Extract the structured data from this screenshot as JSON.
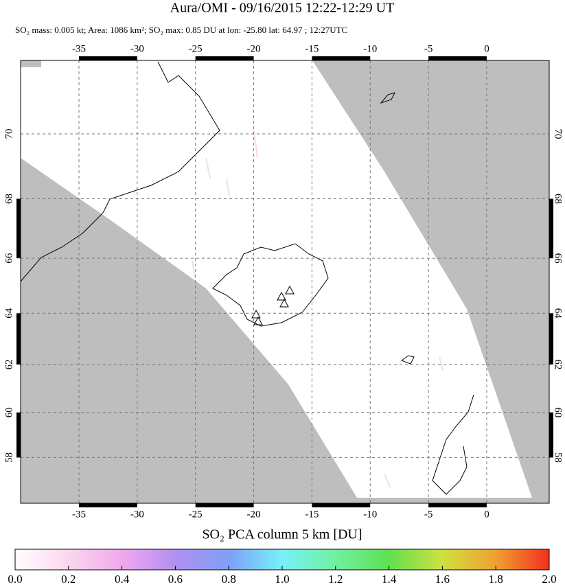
{
  "title": "Aura/OMI - 09/16/2015 12:22-12:29 UT",
  "subtitle": "SO₂ mass: 0.005 kt; Area: 1086 km²; SO₂ max: 0.85 DU at lon: -25.80 lat: 64.97 ; 12:27UTC",
  "map": {
    "lon_ticks": [
      -35,
      -30,
      -25,
      -20,
      -15,
      -10,
      -5,
      0
    ],
    "lat_ticks": [
      70,
      68,
      66,
      64,
      62,
      60,
      58
    ]
  },
  "colorbar": {
    "label": "SO₂ PCA column 5 km [DU]",
    "ticks": [
      {
        "value": 0,
        "label": "0.0"
      },
      {
        "value": 0.2,
        "label": "0.2"
      },
      {
        "value": 0.4,
        "label": "0.4"
      },
      {
        "value": 0.6,
        "label": "0.6"
      },
      {
        "value": 0.8,
        "label": "0.8"
      },
      {
        "value": 1,
        "label": "1.0"
      },
      {
        "value": 1.2,
        "label": "1.2"
      },
      {
        "value": 1.4,
        "label": "1.4"
      },
      {
        "value": 1.6,
        "label": "1.6"
      },
      {
        "value": 1.8,
        "label": "1.8"
      },
      {
        "value": 2,
        "label": "2.0"
      }
    ],
    "range": [
      0,
      2
    ]
  }
}
